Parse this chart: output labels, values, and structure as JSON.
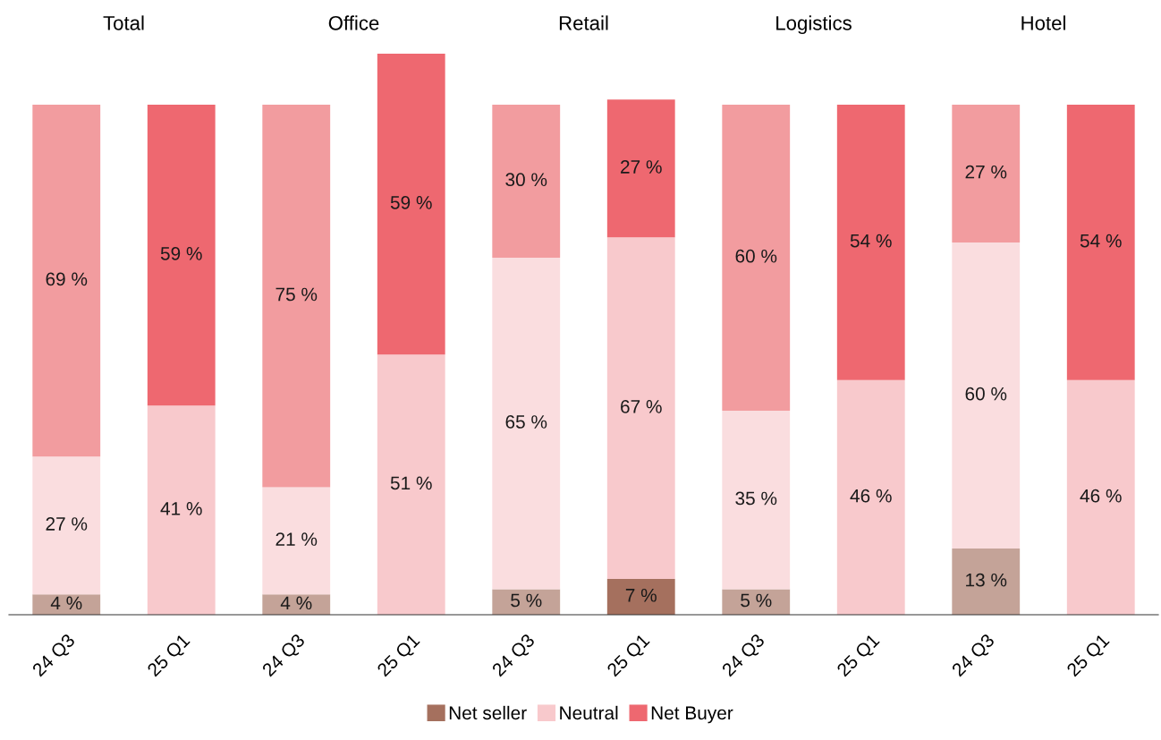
{
  "chart_data": {
    "type": "bar",
    "stacked": true,
    "categories": [
      "24 Q3",
      "25 Q1",
      "24 Q3",
      "25 Q1",
      "24 Q3",
      "25 Q1",
      "24 Q3",
      "25 Q1",
      "24 Q3",
      "25 Q1"
    ],
    "annotations": [
      "Total",
      "Office",
      "Retail",
      "Logistics",
      "Hotel"
    ],
    "series": [
      {
        "name": "Net seller",
        "color": "#a5705e",
        "colors": [
          "#c4a398",
          "#a5705e",
          "#c4a398",
          "#a5705e",
          "#c4a398",
          "#a5705e",
          "#c4a398",
          "#a5705e",
          "#c4a398",
          "#a5705e"
        ],
        "values": [
          4,
          0,
          4,
          0,
          5,
          7,
          5,
          0,
          13,
          0
        ],
        "value_labels": [
          "4 %",
          null,
          "4 %",
          null,
          "5 %",
          "7 %",
          "5 %",
          null,
          "13 %",
          null
        ]
      },
      {
        "name": "Neutral",
        "color": "#f8c9cc",
        "colors": [
          "#fadddf",
          "#f8c9cc",
          "#fadddf",
          "#f8c9cc",
          "#fadddf",
          "#f8c9cc",
          "#fadddf",
          "#f8c9cc",
          "#fadddf",
          "#f8c9cc"
        ],
        "values": [
          27,
          41,
          21,
          51,
          65,
          67,
          35,
          46,
          60,
          46
        ],
        "value_labels": [
          "27 %",
          "41 %",
          "21 %",
          "51 %",
          "65 %",
          "67 %",
          "35 %",
          "46 %",
          "60 %",
          "46 %"
        ]
      },
      {
        "name": "Net Buyer",
        "color": "#ee6870",
        "colors": [
          "#f29c9f",
          "#ee6870",
          "#f29c9f",
          "#ee6870",
          "#f29c9f",
          "#ee6870",
          "#f29c9f",
          "#ee6870",
          "#f29c9f",
          "#ee6870"
        ],
        "values": [
          69,
          59,
          75,
          59,
          30,
          27,
          60,
          54,
          27,
          54
        ],
        "value_labels": [
          "69 %",
          "59 %",
          "75 %",
          "59 %",
          "30 %",
          "27 %",
          "60 %",
          "54 %",
          "27 %",
          "54 %"
        ]
      }
    ],
    "legend": "bottom",
    "grid": false
  }
}
